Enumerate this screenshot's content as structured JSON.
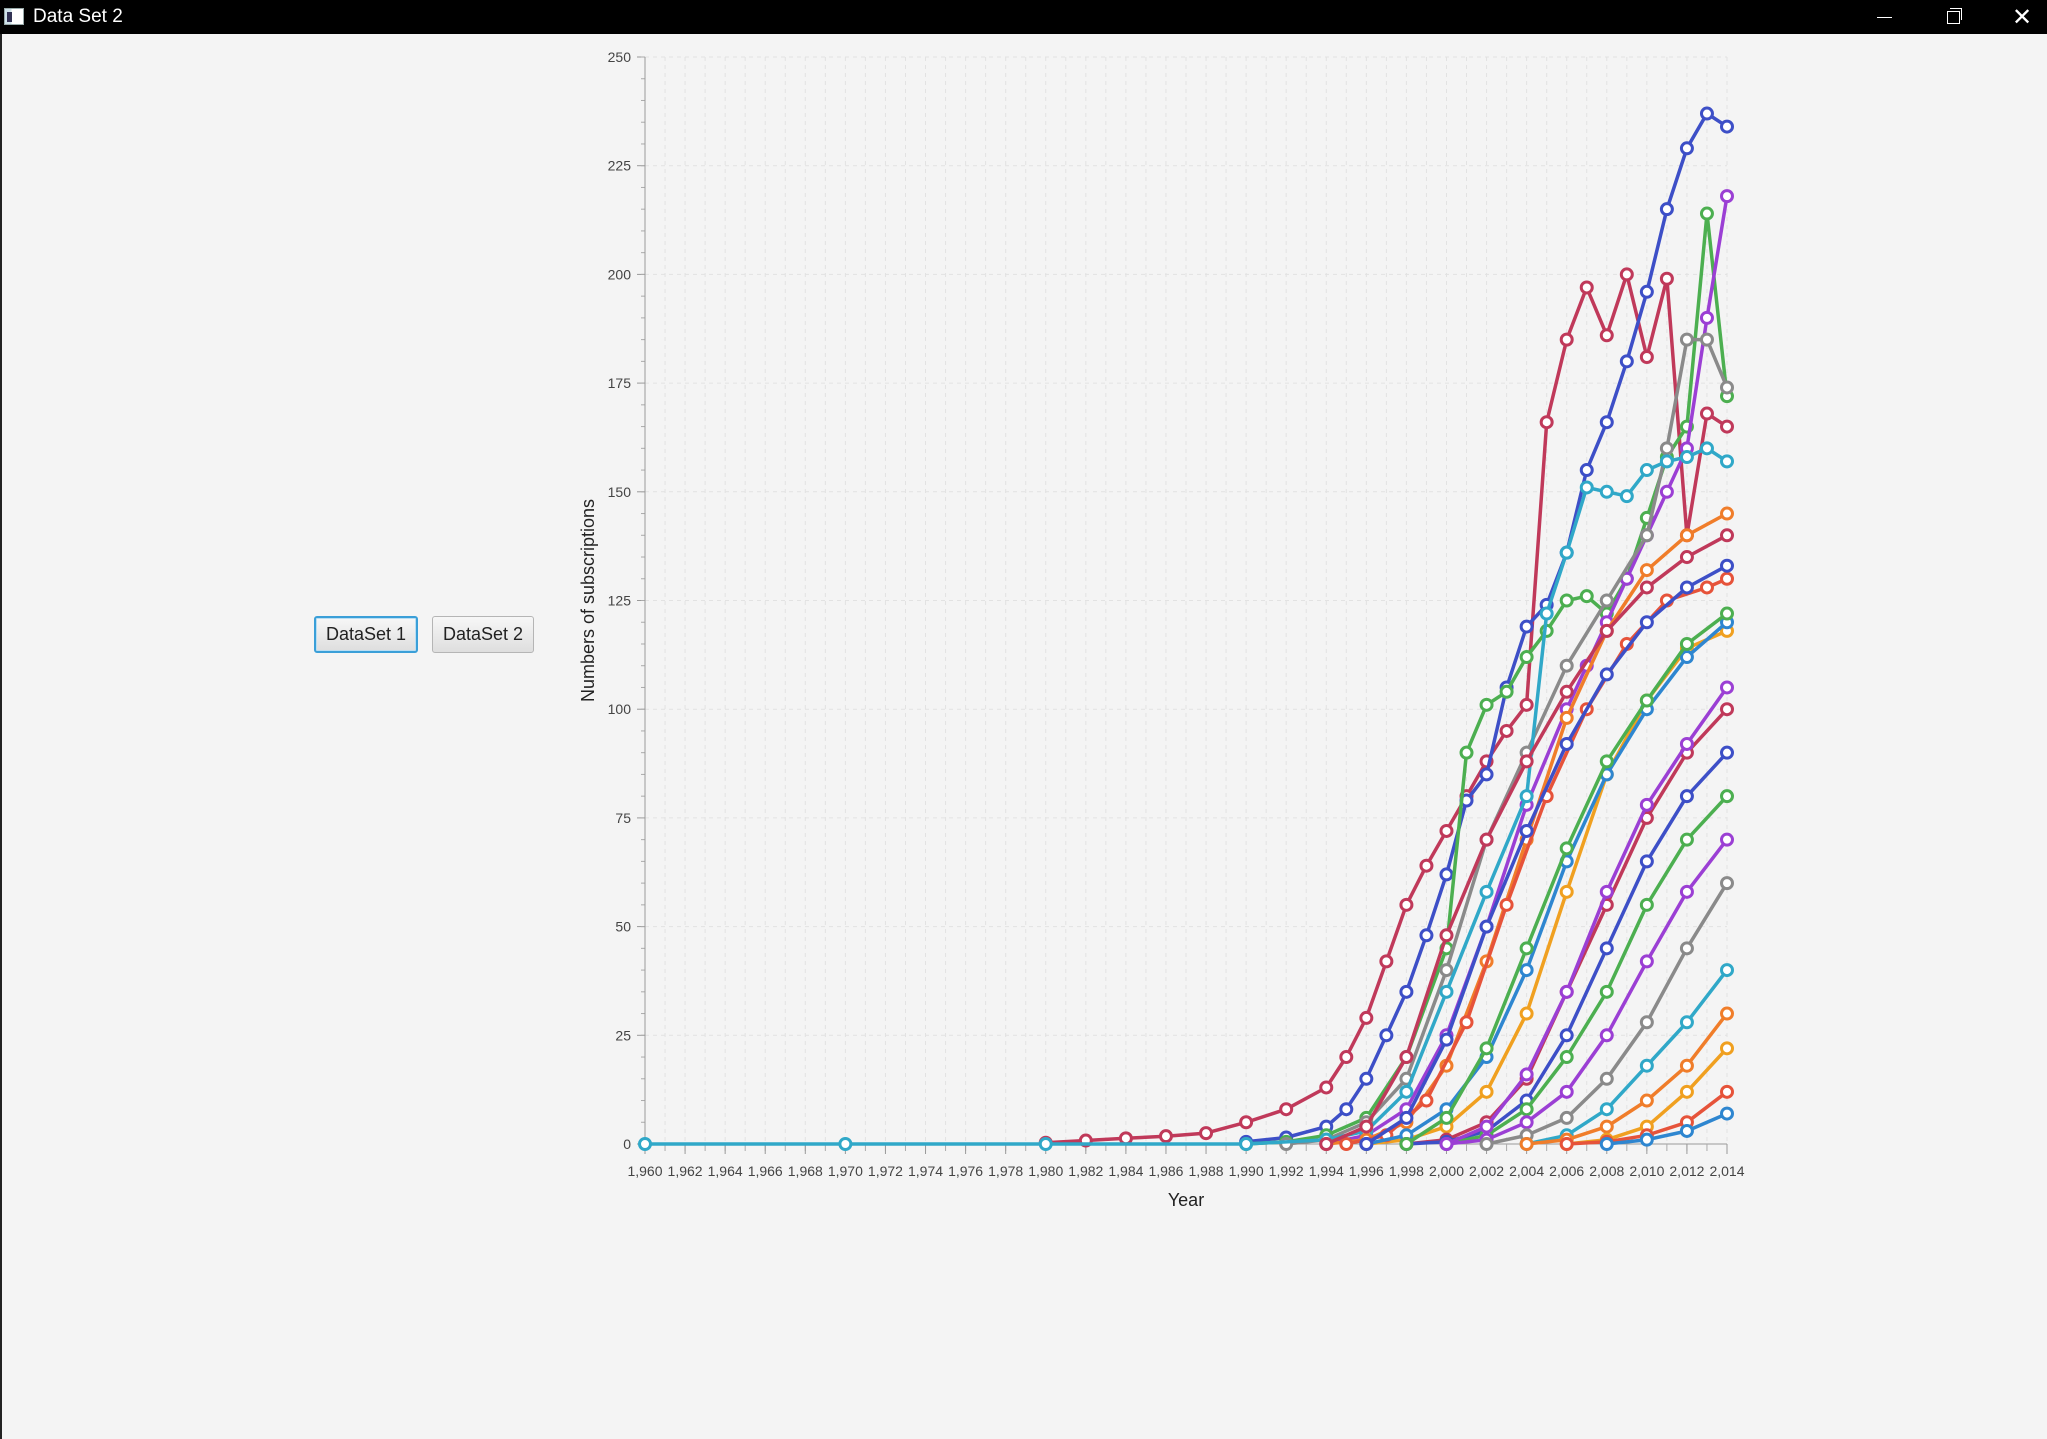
{
  "window": {
    "title": "Data Set 2",
    "minimize_icon": "minimize-icon",
    "maximize_icon": "restore-icon",
    "close_icon": "close-icon",
    "close_glyph": "✕"
  },
  "toolbar": {
    "dataset1_label": "DataSet 1",
    "dataset2_label": "DataSet 2",
    "focused": "DataSet 1"
  },
  "chart_data": {
    "type": "line",
    "title": "",
    "xlabel": "Year",
    "ylabel": "Numbers of subscriptions",
    "xlim": [
      1960,
      2014
    ],
    "ylim": [
      0,
      250
    ],
    "grid": true,
    "legend": "none",
    "x_ticks": [
      "1,960",
      "1,962",
      "1,964",
      "1,966",
      "1,968",
      "1,970",
      "1,972",
      "1,974",
      "1,976",
      "1,978",
      "1,980",
      "1,982",
      "1,984",
      "1,986",
      "1,988",
      "1,990",
      "1,992",
      "1,994",
      "1,996",
      "1,998",
      "2,000",
      "2,002",
      "2,004",
      "2,006",
      "2,008",
      "2,010",
      "2,012",
      "2,014"
    ],
    "y_ticks": [
      "0",
      "25",
      "50",
      "75",
      "100",
      "125",
      "150",
      "175",
      "200",
      "225",
      "250"
    ],
    "palette": [
      "#c0395a",
      "#3d4fc7",
      "#4caf50",
      "#9b3fd4",
      "#8a8a8a",
      "#30a8c8",
      "#f07d2a",
      "#f0a020",
      "#e6533a",
      "#2e86d0"
    ],
    "series": [
      {
        "x": [
          1980,
          1982,
          1984,
          1986,
          1988,
          1990,
          1992,
          1994,
          1995,
          1996,
          1997,
          1998,
          1999,
          2000,
          2001,
          2002,
          2003,
          2004,
          2005,
          2006,
          2007,
          2008,
          2009,
          2010,
          2011,
          2012,
          2013,
          2014
        ],
        "values": [
          0.3,
          0.8,
          1.3,
          1.8,
          2.5,
          5,
          8,
          13,
          20,
          29,
          42,
          55,
          64,
          72,
          80,
          88,
          95,
          101,
          166,
          185,
          197,
          186,
          200,
          181,
          199,
          140,
          168,
          165
        ]
      },
      {
        "x": [
          1990,
          1992,
          1994,
          1995,
          1996,
          1997,
          1998,
          1999,
          2000,
          2001,
          2002,
          2003,
          2004,
          2005,
          2006,
          2007,
          2008,
          2009,
          2010,
          2011,
          2012,
          2013,
          2014
        ],
        "values": [
          0.5,
          1.5,
          4,
          8,
          15,
          25,
          35,
          48,
          62,
          79,
          85,
          105,
          119,
          124,
          136,
          155,
          166,
          180,
          196,
          215,
          229,
          237,
          234
        ]
      },
      {
        "x": [
          1990,
          1992,
          1994,
          1996,
          1998,
          2000,
          2001,
          2002,
          2003,
          2004,
          2005,
          2006,
          2007,
          2008,
          2009,
          2010,
          2011,
          2012,
          2013,
          2014
        ],
        "values": [
          0,
          0.5,
          2,
          6,
          20,
          45,
          90,
          101,
          104,
          112,
          118,
          125,
          126,
          122,
          130,
          144,
          158,
          165,
          214,
          172
        ]
      },
      {
        "x": [
          1994,
          1996,
          1998,
          2000,
          2002,
          2004,
          2006,
          2007,
          2008,
          2009,
          2010,
          2011,
          2012,
          2013,
          2014
        ],
        "values": [
          0,
          2,
          8,
          25,
          50,
          78,
          100,
          110,
          120,
          130,
          140,
          150,
          160,
          190,
          218
        ]
      },
      {
        "x": [
          1992,
          1994,
          1996,
          1998,
          2000,
          2002,
          2004,
          2006,
          2008,
          2010,
          2011,
          2012,
          2013,
          2014
        ],
        "values": [
          0,
          1,
          5,
          15,
          40,
          70,
          90,
          110,
          125,
          140,
          160,
          185,
          185,
          174
        ]
      },
      {
        "x": [
          1960,
          1970,
          1980,
          1990,
          1994,
          1996,
          1998,
          2000,
          2002,
          2004,
          2005,
          2006,
          2007,
          2008,
          2009,
          2010,
          2011,
          2012,
          2013,
          2014
        ],
        "values": [
          0,
          0,
          0,
          0,
          1,
          3,
          12,
          35,
          58,
          80,
          122,
          136,
          151,
          150,
          149,
          155,
          157,
          158,
          160,
          157
        ]
      },
      {
        "x": [
          1994,
          1996,
          1998,
          2000,
          2002,
          2004,
          2006,
          2008,
          2010,
          2012,
          2014
        ],
        "values": [
          0,
          1,
          5,
          18,
          42,
          70,
          98,
          118,
          132,
          140,
          145
        ]
      },
      {
        "x": [
          1996,
          1998,
          2000,
          2002,
          2004,
          2006,
          2008,
          2010,
          2012,
          2014
        ],
        "values": [
          0,
          1,
          4,
          12,
          30,
          58,
          85,
          102,
          114,
          118
        ]
      },
      {
        "x": [
          1995,
          1997,
          1999,
          2001,
          2003,
          2005,
          2007,
          2009,
          2011,
          2013,
          2014
        ],
        "values": [
          0,
          2,
          10,
          28,
          55,
          80,
          100,
          115,
          125,
          128,
          130
        ]
      },
      {
        "x": [
          1996,
          1998,
          2000,
          2002,
          2004,
          2006,
          2008,
          2010,
          2012,
          2014
        ],
        "values": [
          0,
          2,
          8,
          20,
          40,
          65,
          85,
          100,
          112,
          120
        ]
      },
      {
        "x": [
          1998,
          2000,
          2002,
          2004,
          2006,
          2008,
          2010,
          2012,
          2014
        ],
        "values": [
          0,
          1,
          5,
          15,
          35,
          55,
          75,
          90,
          100
        ]
      },
      {
        "x": [
          1998,
          2000,
          2002,
          2004,
          2006,
          2008,
          2010,
          2012,
          2014
        ],
        "values": [
          0,
          0.5,
          3,
          10,
          25,
          45,
          65,
          80,
          90
        ]
      },
      {
        "x": [
          2000,
          2002,
          2004,
          2006,
          2008,
          2010,
          2012,
          2014
        ],
        "values": [
          0,
          2,
          8,
          20,
          35,
          55,
          70,
          80
        ]
      },
      {
        "x": [
          2000,
          2002,
          2004,
          2006,
          2008,
          2010,
          2012,
          2014
        ],
        "values": [
          0,
          1,
          5,
          12,
          25,
          42,
          58,
          70
        ]
      },
      {
        "x": [
          2002,
          2004,
          2006,
          2008,
          2010,
          2012,
          2014
        ],
        "values": [
          0,
          2,
          6,
          15,
          28,
          45,
          60
        ]
      },
      {
        "x": [
          2004,
          2006,
          2008,
          2010,
          2012,
          2014
        ],
        "values": [
          0,
          2,
          8,
          18,
          28,
          40
        ]
      },
      {
        "x": [
          2004,
          2006,
          2008,
          2010,
          2012,
          2014
        ],
        "values": [
          0,
          1,
          4,
          10,
          18,
          30
        ]
      },
      {
        "x": [
          2006,
          2008,
          2010,
          2012,
          2014
        ],
        "values": [
          0,
          1,
          4,
          12,
          22
        ]
      },
      {
        "x": [
          2006,
          2008,
          2010,
          2012,
          2014
        ],
        "values": [
          0,
          0.5,
          2,
          5,
          12
        ]
      },
      {
        "x": [
          2008,
          2010,
          2012,
          2014
        ],
        "values": [
          0,
          1,
          3,
          7
        ]
      },
      {
        "x": [
          1994,
          1996,
          1998,
          2000,
          2002,
          2004,
          2006,
          2008,
          2010,
          2012,
          2014
        ],
        "values": [
          0,
          4,
          20,
          48,
          70,
          88,
          104,
          118,
          128,
          135,
          140
        ]
      },
      {
        "x": [
          1996,
          1998,
          2000,
          2002,
          2004,
          2006,
          2008,
          2010,
          2012,
          2014
        ],
        "values": [
          0,
          6,
          24,
          50,
          72,
          92,
          108,
          120,
          128,
          133
        ]
      },
      {
        "x": [
          1998,
          2000,
          2002,
          2004,
          2006,
          2008,
          2010,
          2012,
          2014
        ],
        "values": [
          0,
          6,
          22,
          45,
          68,
          88,
          102,
          115,
          122
        ]
      },
      {
        "x": [
          2000,
          2002,
          2004,
          2006,
          2008,
          2010,
          2012,
          2014
        ],
        "values": [
          0,
          4,
          16,
          35,
          58,
          78,
          92,
          105
        ]
      }
    ]
  }
}
